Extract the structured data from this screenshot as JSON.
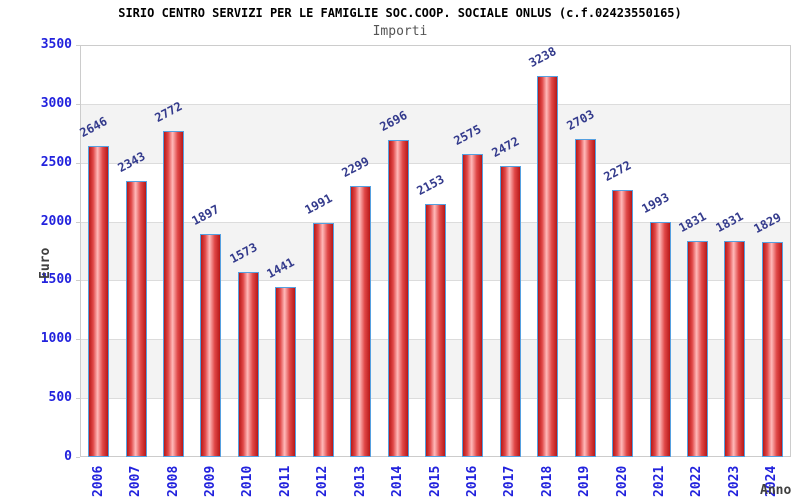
{
  "header": {
    "title": "SIRIO CENTRO SERVIZI PER LE FAMIGLIE SOC.COOP. SOCIALE ONLUS (c.f.02423550165)",
    "subtitle": "Importi"
  },
  "chart_data": {
    "type": "bar",
    "title": "Importi",
    "categories": [
      "2006",
      "2007",
      "2008",
      "2009",
      "2010",
      "2011",
      "2012",
      "2013",
      "2014",
      "2015",
      "2016",
      "2017",
      "2018",
      "2019",
      "2020",
      "2021",
      "2022",
      "2023",
      "2024"
    ],
    "values": [
      2646,
      2343,
      2772,
      1897,
      1573,
      1441,
      1991,
      2299,
      2696,
      2153,
      2575,
      2472,
      3238,
      2703,
      2272,
      1993,
      1831,
      1831,
      1829
    ],
    "xlabel": "Anno",
    "ylabel": "Euro",
    "ylim": [
      0,
      3500
    ],
    "yticks": [
      0,
      500,
      1000,
      1500,
      2000,
      2500,
      3000,
      3500
    ],
    "grid": true,
    "legend": "none",
    "value_labels_shown": true
  },
  "colors": {
    "title": "#000000",
    "subtitle": "#555555",
    "axis_tick_label": "#2222dd",
    "value_label": "#333a8c",
    "axis_title": "#404040",
    "bar_border": "#55a0e0",
    "bar_dark": "#b81818",
    "bar_mid": "#e04848",
    "bar_light": "#ffbaba",
    "band": "#f3f3f3",
    "gridline": "#dcdcdc",
    "plot_border": "#cccccc",
    "background": "#ffffff"
  }
}
